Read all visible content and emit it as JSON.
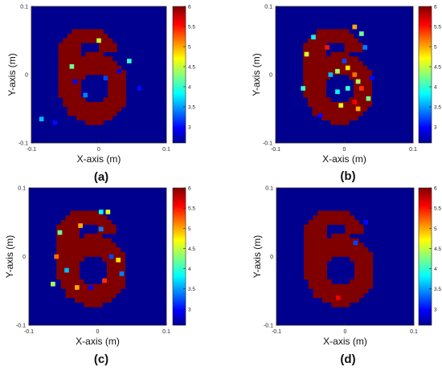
{
  "figure": {
    "panels": [
      {
        "caption": "(a)"
      },
      {
        "caption": "(b)"
      },
      {
        "caption": "(c)"
      },
      {
        "caption": "(d)"
      }
    ]
  },
  "colors": {
    "background_blue": "#00008f",
    "digit_red": "#a50000",
    "colormap": [
      "#00008f",
      "#0000ff",
      "#00c0ff",
      "#40ffbf",
      "#ffff00",
      "#ff8000",
      "#ff0000",
      "#800000"
    ]
  },
  "chart_data": [
    {
      "type": "heatmap",
      "panel": "a",
      "xlabel": "X-axis (m)",
      "ylabel": "Y-axis (m)",
      "xlim": [
        -0.1,
        0.1
      ],
      "ylim": [
        -0.1,
        0.1
      ],
      "xticks": [
        "-0.1",
        "0",
        "0.1"
      ],
      "yticks": [
        "-0.1",
        "0",
        "0.1"
      ],
      "colorbar": {
        "range": [
          2.6,
          6
        ],
        "ticks": [
          "3",
          "3.5",
          "4",
          "4.5",
          "5",
          "5.5",
          "6"
        ]
      },
      "grid": false,
      "content": "digit 6",
      "background_value": 2.6,
      "digit_value": 6,
      "noise_cells": [
        [
          -0.035,
          -0.01,
          3.0
        ],
        [
          0.01,
          -0.005,
          3.2
        ],
        [
          0.045,
          0.02,
          4.0
        ],
        [
          -0.085,
          -0.065,
          3.6
        ],
        [
          -0.065,
          -0.07,
          3.0
        ],
        [
          0.0,
          0.05,
          4.5
        ],
        [
          -0.04,
          0.012,
          4.2
        ],
        [
          0.03,
          0.005,
          2.9
        ],
        [
          -0.02,
          -0.03,
          3.4
        ],
        [
          0.06,
          -0.02,
          3.0
        ]
      ]
    },
    {
      "type": "heatmap",
      "panel": "b",
      "xlabel": "X-axis (m)",
      "ylabel": "Y-axis (m)",
      "xlim": [
        -0.1,
        0.1
      ],
      "ylim": [
        -0.1,
        0.1
      ],
      "xticks": [
        "-0.1",
        "0",
        "0.1"
      ],
      "yticks": [
        "-0.1",
        "0",
        "0.1"
      ],
      "colorbar": {
        "range": [
          2.6,
          6
        ],
        "ticks": [
          "3",
          "3.5",
          "4",
          "4.5",
          "5",
          "5.5",
          "6"
        ]
      },
      "grid": false,
      "content": "digit 6",
      "background_value": 2.6,
      "digit_value": 6,
      "noise_cells": [
        [
          -0.045,
          0.055,
          3.8
        ],
        [
          -0.055,
          0.03,
          4.6
        ],
        [
          0.015,
          0.07,
          5.0
        ],
        [
          -0.025,
          0.04,
          5.5
        ],
        [
          0.005,
          0.01,
          4.8
        ],
        [
          0.015,
          0.0,
          5.2
        ],
        [
          0.02,
          -0.01,
          4.4
        ],
        [
          0.005,
          -0.02,
          4.0
        ],
        [
          0.025,
          -0.02,
          5.4
        ],
        [
          -0.01,
          -0.025,
          3.8
        ],
        [
          0.035,
          -0.035,
          4.2
        ],
        [
          0.015,
          -0.04,
          5.6
        ],
        [
          -0.005,
          -0.045,
          4.6
        ],
        [
          0.02,
          -0.05,
          5.0
        ],
        [
          0.0,
          0.02,
          3.2
        ],
        [
          -0.02,
          0.0,
          3.6
        ],
        [
          0.03,
          0.04,
          3.4
        ],
        [
          -0.06,
          -0.02,
          4.0
        ],
        [
          0.04,
          -0.005,
          3.0
        ],
        [
          -0.035,
          -0.06,
          3.0
        ],
        [
          0.025,
          0.06,
          4.2
        ],
        [
          -0.01,
          0.005,
          4.4
        ]
      ]
    },
    {
      "type": "heatmap",
      "panel": "c",
      "xlabel": "X-axis (m)",
      "ylabel": "Y-axis (m)",
      "xlim": [
        -0.1,
        0.1
      ],
      "ylim": [
        -0.1,
        0.1
      ],
      "xticks": [
        "-0.1",
        "0",
        "0.1"
      ],
      "yticks": [
        "-0.1",
        "0",
        "0.1"
      ],
      "colorbar": {
        "range": [
          2.6,
          6
        ],
        "ticks": [
          "3",
          "3.5",
          "4",
          "4.5",
          "5",
          "5.5",
          "6"
        ]
      },
      "grid": false,
      "content": "digit 6",
      "background_value": 2.6,
      "digit_value": 6,
      "noise_cells": [
        [
          0.005,
          0.065,
          3.8
        ],
        [
          0.015,
          0.065,
          4.6
        ],
        [
          -0.025,
          0.045,
          5.0
        ],
        [
          0.005,
          0.04,
          3.4
        ],
        [
          -0.055,
          0.035,
          4.2
        ],
        [
          -0.06,
          0.0,
          5.2
        ],
        [
          -0.045,
          -0.02,
          3.6
        ],
        [
          0.03,
          -0.005,
          4.8
        ],
        [
          0.035,
          -0.025,
          3.4
        ],
        [
          -0.01,
          -0.045,
          3.0
        ],
        [
          0.01,
          -0.035,
          5.4
        ],
        [
          -0.065,
          -0.04,
          4.4
        ],
        [
          0.02,
          0.0,
          3.2
        ],
        [
          -0.03,
          -0.045,
          5.0
        ]
      ]
    },
    {
      "type": "heatmap",
      "panel": "d",
      "xlabel": "X-axis (m)",
      "ylabel": "Y-axis (m)",
      "xlim": [
        -0.1,
        0.1
      ],
      "ylim": [
        -0.1,
        0.1
      ],
      "xticks": [
        "-0.1",
        "0",
        "0.1"
      ],
      "yticks": [
        "-0.1",
        "0",
        "0.1"
      ],
      "colorbar": {
        "range": [
          2.6,
          6
        ],
        "ticks": [
          "3",
          "3.5",
          "4",
          "4.5",
          "5",
          "5.5",
          "6"
        ]
      },
      "grid": false,
      "content": "digit 6",
      "background_value": 2.6,
      "digit_value": 6,
      "noise_cells": [
        [
          0.03,
          0.05,
          3.0
        ],
        [
          -0.01,
          -0.06,
          5.6
        ],
        [
          0.015,
          0.02,
          3.2
        ]
      ]
    }
  ]
}
